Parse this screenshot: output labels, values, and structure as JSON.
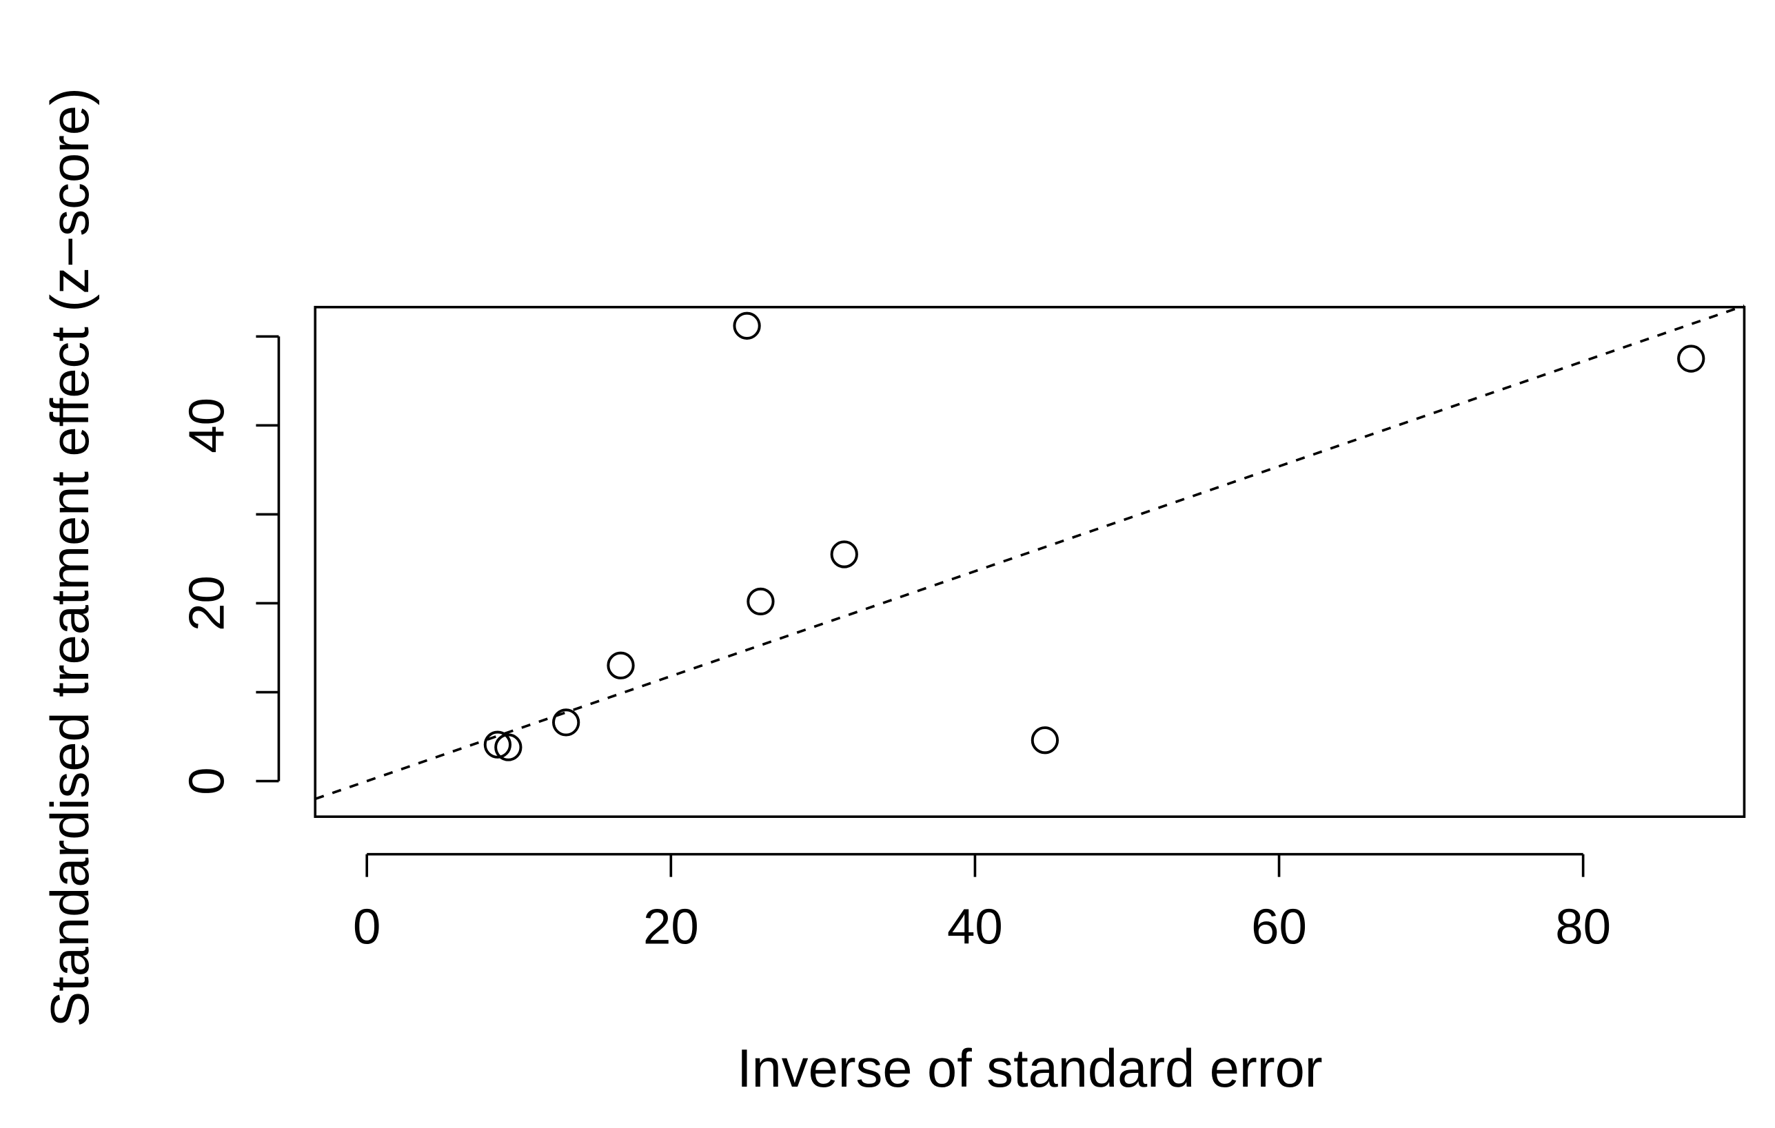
{
  "chart_data": {
    "type": "scatter",
    "x_label": "Inverse of standard error",
    "y_label": "Standardised treatment effect (z−score)",
    "x": [
      8.6,
      9.3,
      13.1,
      16.7,
      25.0,
      25.9,
      31.4,
      44.6,
      87.1
    ],
    "values": [
      4.1,
      3.8,
      6.6,
      13.0,
      51.2,
      20.2,
      25.5,
      4.6,
      47.5
    ],
    "xlim": [
      -3.4,
      90.6
    ],
    "ylim": [
      -4.0,
      53.3
    ],
    "xticks": [
      0,
      20,
      40,
      60,
      80
    ],
    "yticks": [
      0,
      20,
      40
    ],
    "yminor_ticks": [
      10,
      30,
      50
    ],
    "reference_line": {
      "intercept": 0,
      "slope": 0.59
    },
    "color": "#000000"
  }
}
